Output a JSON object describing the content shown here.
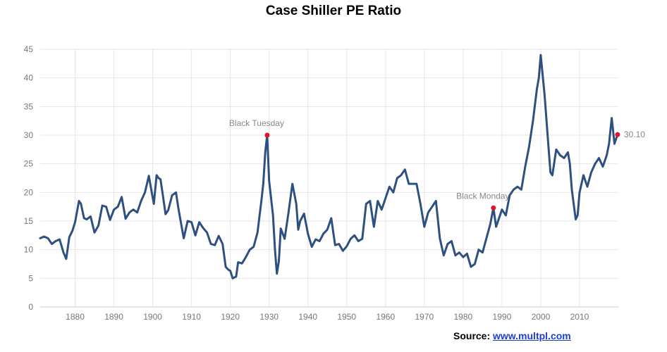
{
  "chart_data": {
    "type": "line",
    "title": "Case Shiller PE Ratio",
    "xlabel": "",
    "ylabel": "",
    "xlim": [
      1871,
      2020
    ],
    "ylim": [
      0,
      45
    ],
    "yticks": [
      0,
      5,
      10,
      15,
      20,
      25,
      30,
      35,
      40,
      45
    ],
    "xticks": [
      1880,
      1890,
      1900,
      1910,
      1920,
      1930,
      1940,
      1950,
      1960,
      1970,
      1980,
      1990,
      2000,
      2010
    ],
    "grid": true,
    "legend": "none",
    "line_color": "#2e5080",
    "marker_color": "#e0142a",
    "series": [
      {
        "x": [
          1871,
          1872,
          1873,
          1874,
          1875,
          1876,
          1877,
          1877.7,
          1878.5,
          1879.3,
          1880,
          1881,
          1881.5,
          1882.3,
          1883,
          1884,
          1885,
          1886,
          1887,
          1888,
          1889,
          1890,
          1891,
          1892,
          1893,
          1894,
          1895,
          1896,
          1897,
          1898,
          1899,
          1899.5,
          1900.3,
          1901,
          1901.5,
          1902,
          1902.5,
          1903.3,
          1904,
          1905,
          1906,
          1906.6,
          1907.2,
          1908,
          1909,
          1910,
          1911,
          1912,
          1913,
          1914,
          1915,
          1916,
          1917,
          1918,
          1918.8,
          1919.5,
          1920,
          1920.6,
          1921.5,
          1922,
          1923,
          1924,
          1925,
          1926,
          1927,
          1928,
          1928.5,
          1929,
          1929.5,
          1930,
          1931,
          1931.5,
          1932,
          1932.5,
          1933,
          1934,
          1935,
          1936,
          1937,
          1937.5,
          1938,
          1939,
          1940,
          1941,
          1942,
          1943,
          1944,
          1945,
          1946,
          1947,
          1948,
          1949,
          1950,
          1951,
          1952,
          1953,
          1954,
          1955,
          1956,
          1957,
          1958,
          1959,
          1960,
          1961,
          1962,
          1963,
          1964,
          1965,
          1966,
          1967,
          1968,
          1969,
          1970,
          1971,
          1972,
          1973,
          1974,
          1975,
          1976,
          1977,
          1978,
          1979,
          1980,
          1981,
          1982,
          1983,
          1984,
          1985,
          1986,
          1987,
          1987.8,
          1988.5,
          1989,
          1990,
          1991,
          1992,
          1993,
          1994,
          1995,
          1996,
          1997,
          1998,
          1999,
          1999.5,
          2000,
          2001,
          2002,
          2002.5,
          2003,
          2004,
          2005,
          2006,
          2007,
          2007.5,
          2008,
          2009,
          2009.5,
          2010,
          2011,
          2012,
          2013,
          2014,
          2015,
          2016,
          2017,
          2017.6,
          2018.3,
          2019,
          2019.8
        ],
        "y": [
          12.0,
          12.3,
          12.0,
          11.0,
          11.5,
          11.8,
          9.5,
          8.4,
          12.2,
          13.3,
          14.8,
          18.5,
          18.0,
          15.5,
          15.3,
          15.8,
          13.0,
          14.2,
          17.7,
          17.5,
          15.2,
          17.0,
          17.5,
          19.2,
          15.4,
          16.5,
          17.0,
          16.5,
          18.5,
          20.0,
          22.9,
          21.0,
          18.0,
          23.0,
          22.5,
          22.3,
          20.0,
          16.2,
          16.9,
          19.5,
          20.0,
          17.3,
          15.0,
          12.0,
          15.0,
          14.8,
          12.5,
          14.8,
          13.8,
          13.0,
          11.0,
          10.8,
          12.4,
          11.0,
          7.0,
          6.5,
          6.3,
          5.0,
          5.3,
          7.8,
          7.6,
          8.7,
          10.0,
          10.5,
          13.0,
          18.5,
          21.5,
          27.0,
          30.0,
          22.0,
          16.0,
          10.0,
          5.8,
          8.0,
          13.7,
          11.9,
          16.5,
          21.5,
          18.0,
          13.5,
          15.0,
          16.3,
          12.8,
          10.5,
          11.8,
          11.5,
          12.8,
          13.5,
          15.5,
          10.8,
          11.0,
          9.8,
          10.6,
          11.9,
          12.5,
          11.5,
          11.9,
          18.0,
          18.5,
          14.0,
          18.5,
          17.0,
          19.0,
          21.0,
          20.0,
          22.5,
          23.0,
          24.0,
          21.5,
          21.5,
          21.5,
          18.0,
          14.0,
          16.5,
          17.5,
          18.5,
          12.0,
          9.0,
          11.0,
          11.5,
          9.0,
          9.5,
          8.7,
          9.3,
          7.0,
          7.5,
          10.0,
          9.5,
          12.0,
          14.5,
          17.3,
          14.0,
          15.0,
          17.0,
          16.0,
          19.5,
          20.5,
          21.0,
          20.5,
          24.5,
          28.0,
          32.5,
          38.0,
          40.0,
          44.0,
          37.0,
          28.0,
          23.5,
          23.0,
          27.5,
          26.5,
          26.0,
          27.0,
          25.0,
          20.5,
          15.3,
          16.0,
          20.0,
          23.0,
          21.0,
          23.5,
          25.0,
          26.0,
          24.5,
          26.5,
          28.5,
          33.0,
          28.5,
          30.1
        ]
      }
    ],
    "annotations": [
      {
        "label": "Black Tuesday",
        "x": 1929.5,
        "y": 30.0
      },
      {
        "label": "Black Monday",
        "x": 1987.8,
        "y": 17.3
      },
      {
        "label": "30.10",
        "x": 2019.8,
        "y": 30.1
      }
    ]
  },
  "source": {
    "prefix": "Source: ",
    "link_text": "www.multpl.com"
  }
}
